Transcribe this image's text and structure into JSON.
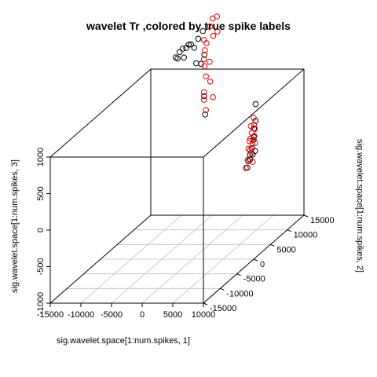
{
  "chart_data": {
    "type": "scatter",
    "title": "wavelet Tr ,colored by true spike labels",
    "xlabel": "sig.wavelet.space[1:num.spikes, 1]",
    "ylabel": "sig.wavelet.space[1:num.spikes, 2]",
    "zlabel": "sig.wavelet.space[1:num.spikes, 3]",
    "x_ticks": [
      "-15000",
      "-10000",
      "-5000",
      "0",
      "5000",
      "10000"
    ],
    "y_ticks": [
      "-15000",
      "-10000",
      "-5000",
      "0",
      "5000",
      "10000",
      "15000"
    ],
    "z_ticks": [
      "-1000",
      "-500",
      "0",
      "500",
      "1000"
    ],
    "xlim": [
      -15000,
      10000
    ],
    "ylim": [
      -15000,
      15000
    ],
    "zlim": [
      -1000,
      1000
    ],
    "grid": true,
    "colors": {
      "black": "#000000",
      "red": "#e00000"
    },
    "series": [
      {
        "color": "black",
        "points": [
          [
            -8700,
            13000,
            1360
          ],
          [
            -8400,
            13500,
            1350
          ],
          [
            -9000,
            12600,
            1330
          ],
          [
            -8200,
            13900,
            1380
          ],
          [
            -9300,
            12000,
            1280
          ],
          [
            -8000,
            14200,
            1370
          ],
          [
            -7800,
            14800,
            1300
          ],
          [
            -9200,
            12400,
            1250
          ],
          [
            -8600,
            13200,
            1230
          ],
          [
            -7200,
            14900,
            1420
          ],
          [
            -6500,
            15000,
            1520
          ],
          [
            -7300,
            14500,
            1100
          ],
          [
            -6700,
            14800,
            1080
          ],
          [
            -6200,
            14900,
            1200
          ],
          [
            -6300,
            15000,
            630
          ],
          [
            -6100,
            14950,
            380
          ],
          [
            2100,
            15000,
            520
          ],
          [
            2200,
            14800,
            300
          ],
          [
            2000,
            14600,
            50
          ],
          [
            1800,
            14400,
            -60
          ],
          [
            1600,
            14200,
            -140
          ],
          [
            1500,
            14000,
            -220
          ],
          [
            2300,
            14500,
            -100
          ],
          [
            1400,
            13800,
            -300
          ],
          [
            2000,
            14700,
            200
          ],
          [
            2200,
            14300,
            100
          ],
          [
            1700,
            14100,
            -200
          ],
          [
            1900,
            14500,
            -150
          ]
        ]
      },
      {
        "color": "red",
        "points": [
          [
            -4200,
            15000,
            1720
          ],
          [
            -4800,
            14800,
            1700
          ],
          [
            -5100,
            14600,
            1600
          ],
          [
            -4600,
            14600,
            1470
          ],
          [
            -4000,
            14800,
            1520
          ],
          [
            -5900,
            14200,
            1430
          ],
          [
            -5600,
            14400,
            1380
          ],
          [
            -6000,
            14400,
            1160
          ],
          [
            -5400,
            15000,
            1100
          ],
          [
            -6200,
            15000,
            1040
          ],
          [
            -6000,
            15000,
            900
          ],
          [
            -5300,
            15000,
            830
          ],
          [
            -6000,
            14700,
            1270
          ],
          [
            -6200,
            14800,
            590
          ],
          [
            -6000,
            15000,
            440
          ],
          [
            -4800,
            14900,
            620
          ],
          [
            -6100,
            14600,
            700
          ],
          [
            2000,
            14600,
            350
          ],
          [
            1700,
            14300,
            250
          ],
          [
            2300,
            14500,
            200
          ],
          [
            1800,
            14400,
            150
          ],
          [
            2100,
            14600,
            100
          ],
          [
            1600,
            14100,
            50
          ],
          [
            1900,
            14400,
            0
          ],
          [
            1500,
            14000,
            -50
          ],
          [
            2200,
            14700,
            0
          ],
          [
            1800,
            14300,
            -120
          ],
          [
            1400,
            13900,
            -200
          ],
          [
            1900,
            14500,
            -250
          ],
          [
            2000,
            14700,
            250
          ],
          [
            1700,
            14200,
            80
          ],
          [
            1200,
            13700,
            -300
          ],
          [
            1600,
            14300,
            -80
          ]
        ]
      }
    ]
  }
}
